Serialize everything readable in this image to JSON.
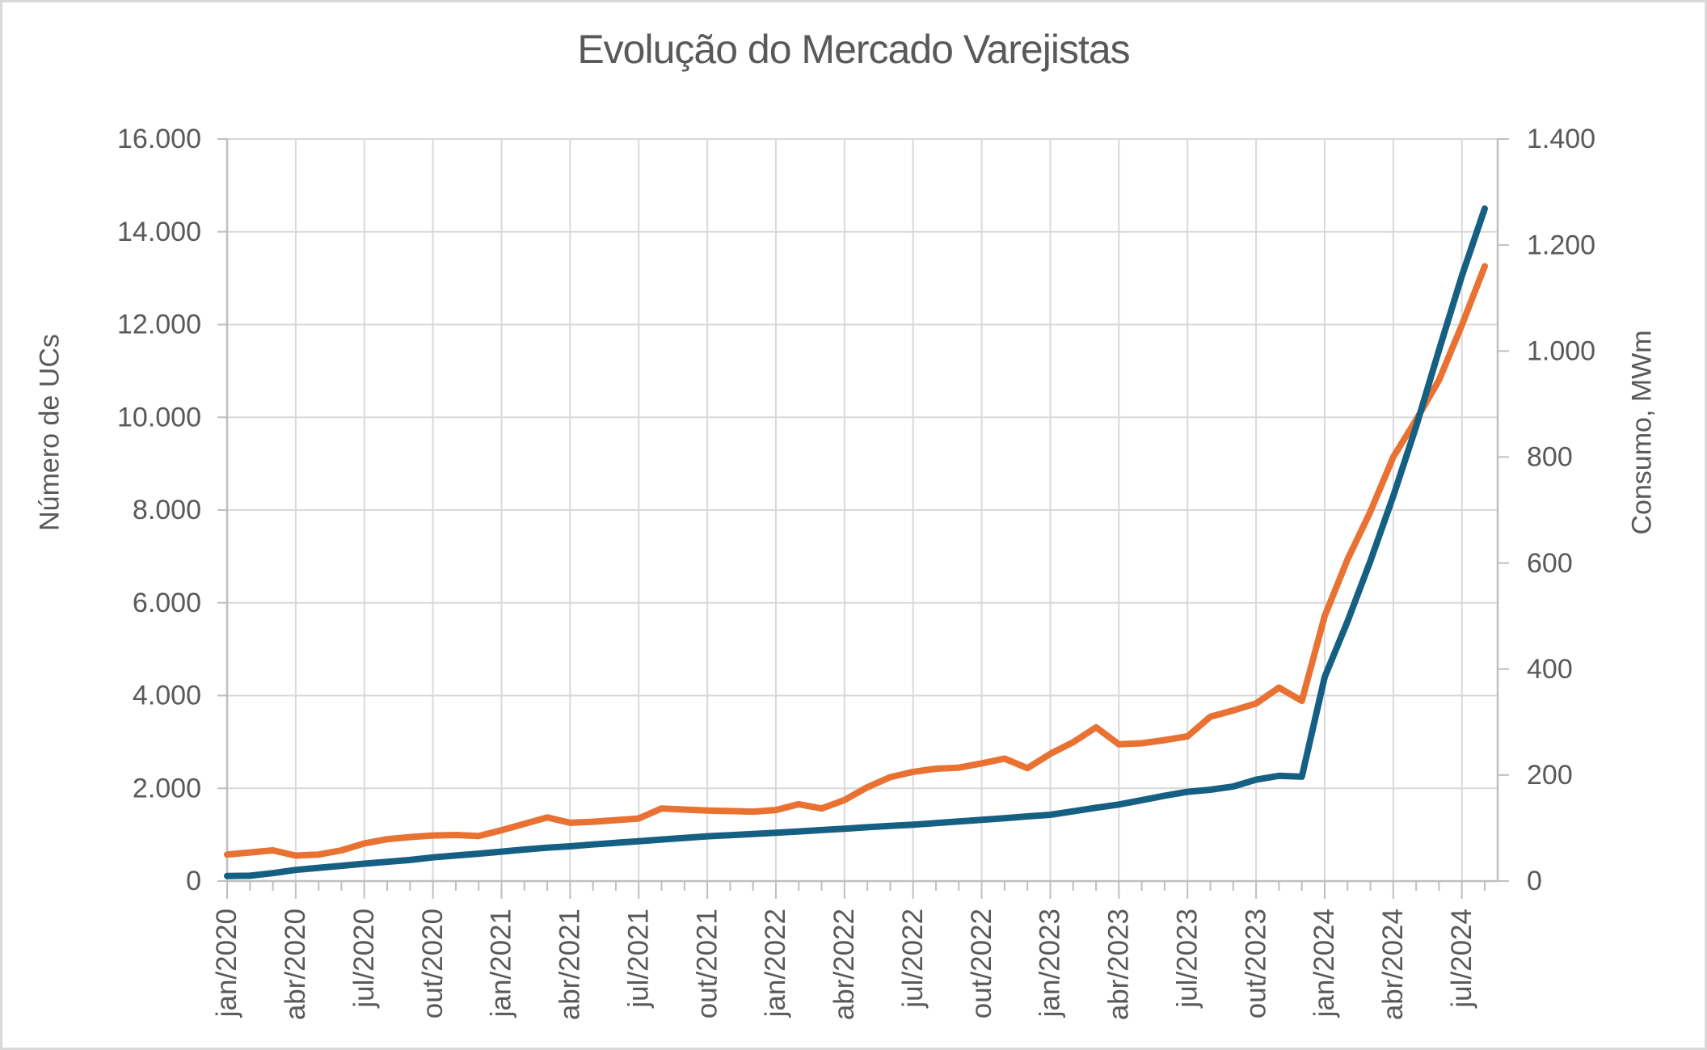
{
  "chart": {
    "title": "Evolução do Mercado Varejistas",
    "left_axis_title": "Número de UCs",
    "right_axis_title": "Consumo, MWm"
  },
  "chart_data": {
    "type": "line",
    "title": "Evolução do Mercado Varejistas",
    "x": [
      "jan/2020",
      "fev/2020",
      "mar/2020",
      "abr/2020",
      "mai/2020",
      "jun/2020",
      "jul/2020",
      "ago/2020",
      "set/2020",
      "out/2020",
      "nov/2020",
      "dez/2020",
      "jan/2021",
      "fev/2021",
      "mar/2021",
      "abr/2021",
      "mai/2021",
      "jun/2021",
      "jul/2021",
      "ago/2021",
      "set/2021",
      "out/2021",
      "nov/2021",
      "dez/2021",
      "jan/2022",
      "fev/2022",
      "mar/2022",
      "abr/2022",
      "mai/2022",
      "jun/2022",
      "jul/2022",
      "ago/2022",
      "set/2022",
      "out/2022",
      "nov/2022",
      "dez/2022",
      "jan/2023",
      "fev/2023",
      "mar/2023",
      "abr/2023",
      "mai/2023",
      "jun/2023",
      "jul/2023",
      "ago/2023",
      "set/2023",
      "out/2023",
      "nov/2023",
      "dez/2023",
      "jan/2024",
      "fev/2024",
      "mar/2024",
      "abr/2024",
      "mai/2024",
      "jun/2024",
      "jul/2024",
      "ago/2024"
    ],
    "x_tick_labels": [
      "jan/2020",
      "abr/2020",
      "jul/2020",
      "out/2020",
      "jan/2021",
      "abr/2021",
      "jul/2021",
      "out/2021",
      "jan/2022",
      "abr/2022",
      "jul/2022",
      "out/2022",
      "jan/2023",
      "abr/2023",
      "jul/2023",
      "out/2023",
      "jan/2024",
      "abr/2024",
      "jul/2024"
    ],
    "x_tick_every": 3,
    "series": [
      {
        "name": "Número de UCs",
        "axis": "left",
        "color": "#156082",
        "values": [
          110,
          115,
          170,
          240,
          285,
          330,
          375,
          415,
          455,
          510,
          550,
          590,
          635,
          680,
          720,
          750,
          790,
          825,
          860,
          895,
          930,
          965,
          990,
          1015,
          1040,
          1070,
          1100,
          1130,
          1160,
          1190,
          1215,
          1250,
          1285,
          1320,
          1355,
          1395,
          1430,
          1505,
          1580,
          1650,
          1745,
          1840,
          1925,
          1970,
          2040,
          2185,
          2270,
          2250,
          4400,
          5600,
          6900,
          8300,
          9800,
          11450,
          13050,
          14500
        ]
      },
      {
        "name": "Consumo, MWm",
        "axis": "right",
        "color": "#E97132",
        "values": [
          50,
          54,
          58,
          48,
          50,
          58,
          71,
          79,
          83,
          86,
          87,
          85,
          96,
          108,
          120,
          110,
          112,
          115,
          118,
          137,
          135,
          133,
          132,
          131,
          134,
          145,
          137,
          153,
          177,
          196,
          206,
          212,
          214,
          222,
          231,
          213,
          240,
          262,
          290,
          258,
          260,
          266,
          273,
          310,
          322,
          335,
          365,
          340,
          500,
          607,
          697,
          800,
          870,
          945,
          1049,
          1160
        ]
      }
    ],
    "left_axis": {
      "title": "Número de UCs",
      "min": 0,
      "max": 16000,
      "step": 2000,
      "tick_labels": [
        "0",
        "2.000",
        "4.000",
        "6.000",
        "8.000",
        "10.000",
        "12.000",
        "14.000",
        "16.000"
      ]
    },
    "right_axis": {
      "title": "Consumo, MWm",
      "min": 0,
      "max": 1400,
      "step": 200,
      "tick_labels": [
        "0",
        "200",
        "400",
        "600",
        "800",
        "1.000",
        "1.200",
        "1.400"
      ]
    },
    "grid": true,
    "legend": false,
    "colors": {
      "text": "#595959",
      "gridline": "#D9D9D9",
      "axis_line": "#BFBFBF",
      "background": "#FFFFFF",
      "border": "#D9D9D9"
    }
  }
}
